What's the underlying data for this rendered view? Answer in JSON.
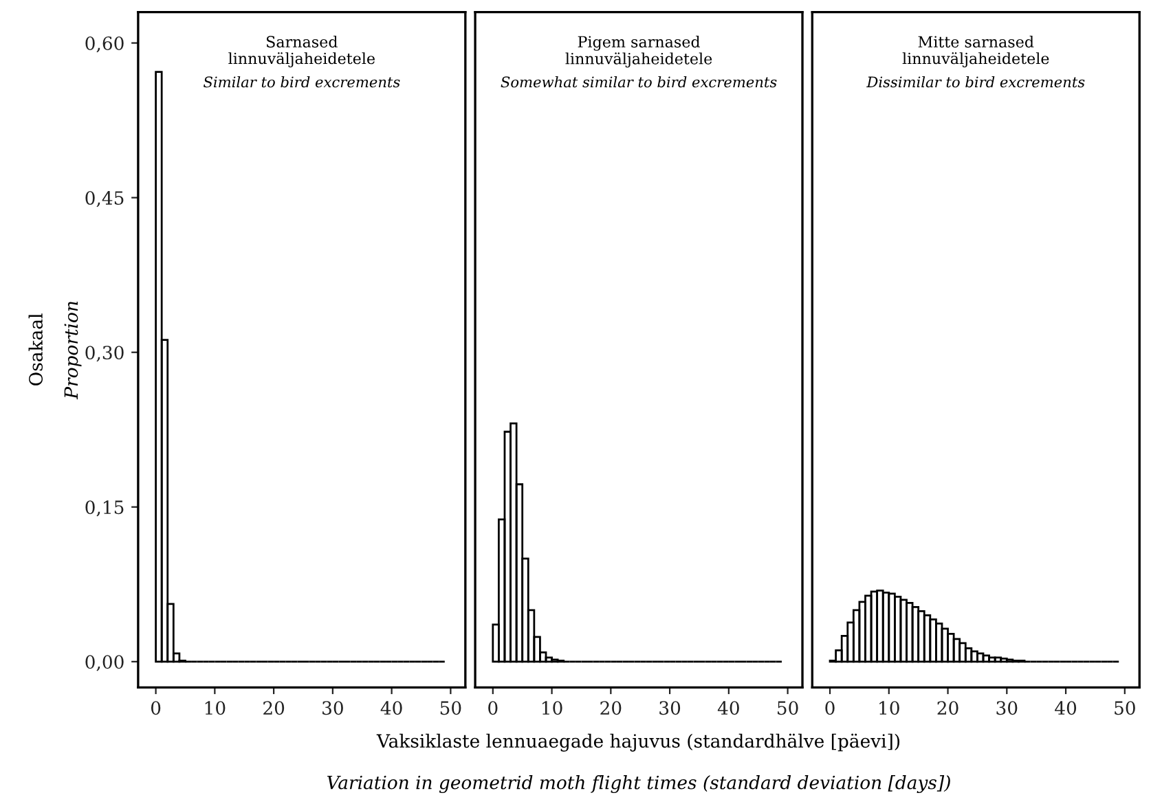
{
  "chart_data": [
    {
      "type": "histogram",
      "title": "Sarnased\nlinnuväljaheidetele",
      "subtitle": "Similar to bird excrements",
      "ylabel": "Osakaal",
      "y2label": "Proportion",
      "bins": [
        0,
        1,
        2,
        3,
        4,
        5,
        6,
        7,
        8,
        9,
        10,
        11,
        12,
        13,
        14,
        15,
        16,
        17,
        18,
        19,
        20,
        21,
        22,
        23,
        24,
        25,
        26,
        27,
        28,
        29,
        30,
        31,
        32,
        33,
        34,
        35,
        36,
        37,
        38,
        39,
        40,
        41,
        42,
        43,
        44,
        45,
        46,
        47,
        48,
        49
      ],
      "values": [
        0.572,
        0.312,
        0.056,
        0.008,
        0.001,
        0,
        0,
        0,
        0,
        0,
        0,
        0,
        0,
        0,
        0,
        0,
        0,
        0,
        0,
        0,
        0,
        0,
        0,
        0,
        0,
        0,
        0,
        0,
        0,
        0,
        0,
        0,
        0,
        0,
        0,
        0,
        0,
        0,
        0,
        0,
        0,
        0,
        0,
        0,
        0,
        0,
        0,
        0,
        0
      ],
      "color": "#000000",
      "xlim": [
        -3,
        52.5
      ],
      "ylim": [
        -0.025,
        0.63
      ],
      "xticks": [
        0,
        10,
        20,
        30,
        40,
        50
      ],
      "yticks": [
        {
          "value": 0,
          "label": "0,00"
        },
        {
          "value": 0.15,
          "label": "0,15"
        },
        {
          "value": 0.3,
          "label": "0,30"
        },
        {
          "value": 0.45,
          "label": "0,45"
        },
        {
          "value": 0.6,
          "label": "0,60"
        }
      ],
      "grid": false
    },
    {
      "type": "histogram",
      "title": "Pigem sarnased\nlinnuväljaheidetele",
      "subtitle": "Somewhat similar to bird excrements",
      "xlabel": "Vaksiklaste lennuaegade hajuvus (standardhälve [päevi])",
      "x2label": "Variation in geometrid moth flight times (standard deviation [days])",
      "bins": [
        0,
        1,
        2,
        3,
        4,
        5,
        6,
        7,
        8,
        9,
        10,
        11,
        12,
        13,
        14,
        15,
        16,
        17,
        18,
        19,
        20,
        21,
        22,
        23,
        24,
        25,
        26,
        27,
        28,
        29,
        30,
        31,
        32,
        33,
        34,
        35,
        36,
        37,
        38,
        39,
        40,
        41,
        42,
        43,
        44,
        45,
        46,
        47,
        48,
        49
      ],
      "values": [
        0.036,
        0.138,
        0.223,
        0.231,
        0.172,
        0.1,
        0.05,
        0.024,
        0.009,
        0.004,
        0.002,
        0.001,
        0,
        0,
        0,
        0,
        0,
        0,
        0,
        0,
        0,
        0,
        0,
        0,
        0,
        0,
        0,
        0,
        0,
        0,
        0,
        0,
        0,
        0,
        0,
        0,
        0,
        0,
        0,
        0,
        0,
        0,
        0,
        0,
        0,
        0,
        0,
        0,
        0
      ],
      "color": "#000000",
      "xlim": [
        -3,
        52.5
      ],
      "ylim": [
        -0.025,
        0.63
      ],
      "xticks": [
        0,
        10,
        20,
        30,
        40,
        50
      ],
      "tick_labels": "x",
      "grid": false
    },
    {
      "type": "histogram",
      "title": "Mitte sarnased\nlinnuväljaheidetele",
      "subtitle": "Dissimilar to bird excrements",
      "bins": [
        0,
        1,
        2,
        3,
        4,
        5,
        6,
        7,
        8,
        9,
        10,
        11,
        12,
        13,
        14,
        15,
        16,
        17,
        18,
        19,
        20,
        21,
        22,
        23,
        24,
        25,
        26,
        27,
        28,
        29,
        30,
        31,
        32,
        33,
        34,
        35,
        36,
        37,
        38,
        39,
        40,
        41,
        42,
        43,
        44,
        45,
        46,
        47,
        48,
        49
      ],
      "values": [
        0.001,
        0.011,
        0.025,
        0.038,
        0.05,
        0.058,
        0.064,
        0.068,
        0.069,
        0.067,
        0.066,
        0.063,
        0.06,
        0.057,
        0.053,
        0.049,
        0.045,
        0.041,
        0.037,
        0.032,
        0.027,
        0.022,
        0.018,
        0.013,
        0.01,
        0.008,
        0.006,
        0.004,
        0.004,
        0.003,
        0.002,
        0.001,
        0.001,
        0,
        0,
        0,
        0,
        0,
        0,
        0,
        0,
        0,
        0,
        0,
        0,
        0,
        0,
        0,
        0
      ],
      "color": "#000000",
      "xlim": [
        -3,
        52.5
      ],
      "ylim": [
        -0.025,
        0.63
      ],
      "xticks": [
        0,
        10,
        20,
        30,
        40,
        50
      ],
      "tick_labels": "x",
      "grid": false
    }
  ]
}
